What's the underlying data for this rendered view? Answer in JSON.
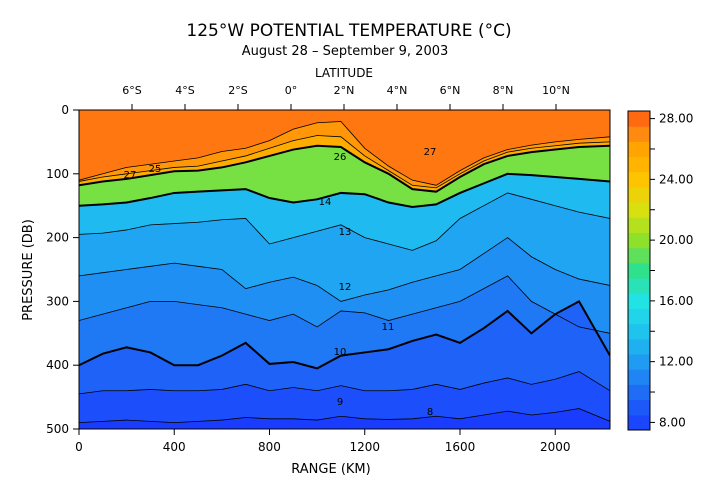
{
  "chart_data": {
    "type": "heatmap",
    "title": "125°W POTENTIAL TEMPERATURE (°C)",
    "subtitle": "August 28 – September 9, 2003",
    "xlabel": "RANGE (KM)",
    "ylabel": "PRESSURE (DB)",
    "top_axis_label": "LATITUDE",
    "xlim": [
      0,
      2230
    ],
    "ylim": [
      500,
      0
    ],
    "x_ticks": [
      "0",
      "400",
      "800",
      "1200",
      "1600",
      "2000"
    ],
    "y_ticks": [
      "0",
      "100",
      "200",
      "300",
      "400",
      "500"
    ],
    "latitude_ticks": [
      "6°S",
      "4°S",
      "2°S",
      "0°",
      "2°N",
      "4°N",
      "6°N",
      "8°N",
      "10°N"
    ],
    "colorbar_ticks": [
      "28.00",
      "24.00",
      "20.00",
      "16.00",
      "12.00",
      "8.00"
    ],
    "colorbar_range": [
      7.5,
      28.5
    ],
    "contour_labels": [
      "27",
      "25",
      "27",
      "26",
      "14",
      "13",
      "12",
      "11",
      "10",
      "9",
      "8"
    ],
    "range_km": [
      0,
      100,
      200,
      300,
      400,
      500,
      600,
      700,
      800,
      900,
      1000,
      1100,
      1200,
      1300,
      1400,
      1500,
      1600,
      1700,
      1800,
      1900,
      2000,
      2100,
      2230
    ],
    "profiles": [
      {
        "level": 27,
        "depth": [
          110,
          100,
          90,
          85,
          80,
          75,
          65,
          60,
          48,
          30,
          20,
          18,
          60,
          88,
          110,
          118,
          95,
          75,
          62,
          55,
          50,
          46,
          42
        ]
      },
      {
        "level": 26,
        "depth": [
          112,
          105,
          100,
          95,
          90,
          88,
          80,
          72,
          60,
          48,
          40,
          42,
          72,
          95,
          118,
          122,
          100,
          80,
          66,
          60,
          56,
          52,
          50
        ]
      },
      {
        "level": 25,
        "depth": [
          118,
          112,
          108,
          102,
          96,
          95,
          90,
          82,
          72,
          62,
          56,
          58,
          82,
          100,
          124,
          128,
          105,
          85,
          72,
          66,
          62,
          58,
          56
        ]
      },
      {
        "level": 14,
        "depth": [
          150,
          148,
          145,
          138,
          130,
          128,
          126,
          124,
          138,
          145,
          140,
          130,
          132,
          145,
          152,
          148,
          130,
          115,
          100,
          102,
          105,
          108,
          112
        ]
      },
      {
        "level": 13,
        "depth": [
          195,
          193,
          188,
          180,
          178,
          176,
          172,
          170,
          210,
          200,
          190,
          180,
          200,
          210,
          220,
          205,
          170,
          150,
          130,
          140,
          150,
          160,
          170
        ]
      },
      {
        "level": 12,
        "depth": [
          260,
          255,
          250,
          245,
          240,
          245,
          250,
          280,
          270,
          262,
          275,
          300,
          290,
          282,
          270,
          260,
          250,
          225,
          200,
          230,
          250,
          265,
          275
        ]
      },
      {
        "level": 11,
        "depth": [
          330,
          320,
          310,
          300,
          300,
          305,
          310,
          320,
          330,
          320,
          340,
          315,
          318,
          330,
          320,
          310,
          300,
          280,
          260,
          300,
          320,
          340,
          350
        ]
      },
      {
        "level": 10,
        "depth": [
          400,
          382,
          372,
          380,
          400,
          400,
          385,
          365,
          398,
          395,
          405,
          385,
          380,
          375,
          362,
          352,
          365,
          342,
          315,
          350,
          320,
          300,
          385
        ]
      },
      {
        "level": 9,
        "depth": [
          445,
          440,
          440,
          438,
          440,
          440,
          438,
          430,
          440,
          435,
          440,
          432,
          440,
          440,
          438,
          430,
          438,
          428,
          420,
          430,
          422,
          410,
          440
        ]
      },
      {
        "level": 8,
        "depth": [
          490,
          488,
          486,
          488,
          490,
          488,
          486,
          482,
          484,
          484,
          486,
          480,
          484,
          485,
          484,
          480,
          484,
          478,
          472,
          478,
          474,
          468,
          488
        ]
      }
    ]
  }
}
